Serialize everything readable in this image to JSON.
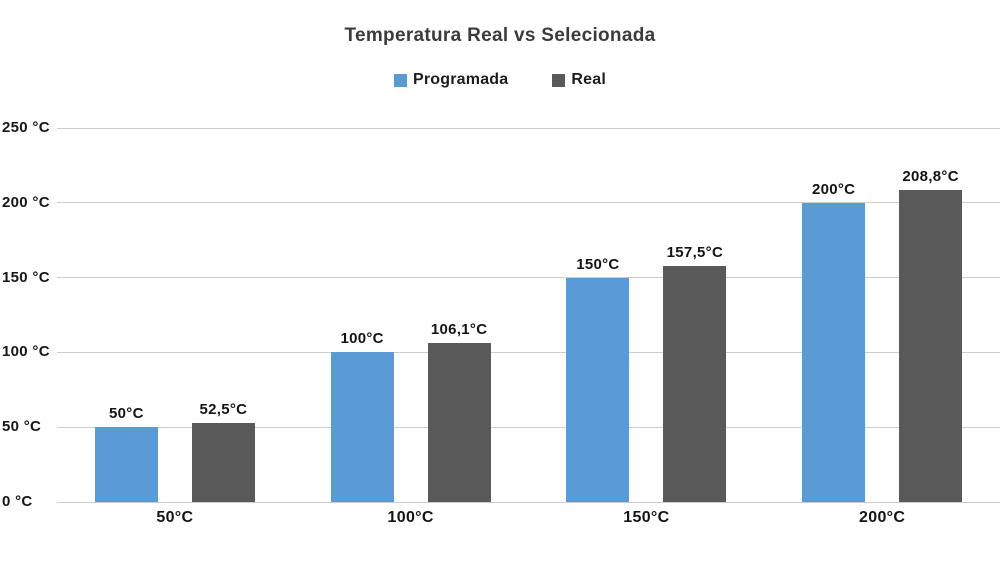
{
  "title": "Temperatura Real vs Selecionada",
  "legend": [
    {
      "label": "Programada",
      "color": "#5b9bd5"
    },
    {
      "label": "Real",
      "color": "#595959"
    }
  ],
  "colors": {
    "programada": "#5b9bd5",
    "real": "#595959",
    "gridline": "#cccccc",
    "title_text": "#3b3b3b",
    "label_text": "#141414"
  },
  "chart_data": {
    "type": "bar",
    "title": "Temperatura Real vs Selecionada",
    "categories": [
      "50°C",
      "100°C",
      "150°C",
      "200°C"
    ],
    "series": [
      {
        "name": "Programada",
        "color": "#5b9bd5",
        "values": [
          50,
          100,
          150,
          200
        ],
        "labels": [
          "50°C",
          "100°C",
          "150°C",
          "200°C"
        ]
      },
      {
        "name": "Real",
        "color": "#595959",
        "values": [
          52.5,
          106.1,
          157.5,
          208.8
        ],
        "labels": [
          "52,5°C",
          "106,1°C",
          "157,5°C",
          "208,8°C"
        ]
      }
    ],
    "xlabel": "",
    "ylabel": "",
    "ylim": [
      0,
      250
    ],
    "ytick_step": 50,
    "ytick_labels": [
      "0 °C",
      "50 °C",
      "100 °C",
      "150 °C",
      "200 °C",
      "250 °C"
    ],
    "grid": true,
    "legend_position": "top"
  }
}
